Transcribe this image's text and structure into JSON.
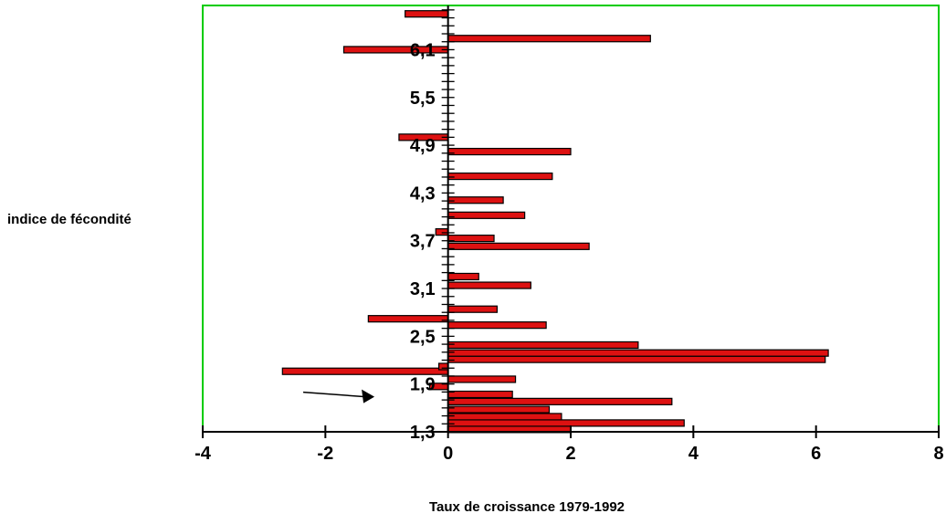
{
  "chart_data": {
    "type": "bar",
    "orientation": "horizontal",
    "xlabel": "Taux de croissance 1979-1992",
    "ylabel": "indice de fécondité",
    "xlim": [
      -4,
      8
    ],
    "ylim": [
      1.27,
      6.55
    ],
    "x_ticks": [
      "-4",
      "-2",
      "0",
      "2",
      "4",
      "6",
      "8"
    ],
    "y_ticks": [
      "1,3",
      "1,9",
      "2,5",
      "3,1",
      "3,7",
      "4,3",
      "4,9",
      "5,5",
      "6,1"
    ],
    "bars": [
      {
        "y": 1.33,
        "value": 2.0
      },
      {
        "y": 1.41,
        "value": 3.85
      },
      {
        "y": 1.49,
        "value": 1.85
      },
      {
        "y": 1.58,
        "value": 1.65
      },
      {
        "y": 1.68,
        "value": 3.65
      },
      {
        "y": 1.77,
        "value": 1.05
      },
      {
        "y": 1.87,
        "value": -0.3
      },
      {
        "y": 1.96,
        "value": 1.1
      },
      {
        "y": 2.06,
        "value": -2.7
      },
      {
        "y": 2.12,
        "value": -0.15
      },
      {
        "y": 2.21,
        "value": 6.15
      },
      {
        "y": 2.29,
        "value": 6.2
      },
      {
        "y": 2.39,
        "value": 3.1
      },
      {
        "y": 2.64,
        "value": 1.6
      },
      {
        "y": 2.72,
        "value": -1.3
      },
      {
        "y": 2.84,
        "value": 0.8
      },
      {
        "y": 3.14,
        "value": 1.35
      },
      {
        "y": 3.25,
        "value": 0.5
      },
      {
        "y": 3.63,
        "value": 2.3
      },
      {
        "y": 3.73,
        "value": 0.75
      },
      {
        "y": 3.81,
        "value": -0.2
      },
      {
        "y": 4.02,
        "value": 1.25
      },
      {
        "y": 4.21,
        "value": 0.9
      },
      {
        "y": 4.51,
        "value": 1.7
      },
      {
        "y": 4.82,
        "value": 2.0
      },
      {
        "y": 5.0,
        "value": -0.8
      },
      {
        "y": 6.1,
        "value": -1.7
      },
      {
        "y": 6.24,
        "value": 3.3
      },
      {
        "y": 6.55,
        "value": -0.7
      }
    ],
    "bar_color": "#dd1111",
    "bar_edge_color": "#000000",
    "frame_color": "#00cc00",
    "annotation": "arrow",
    "annotation_target": {
      "x": -1.2,
      "y": 1.74
    },
    "grid": false,
    "legend": "none"
  }
}
